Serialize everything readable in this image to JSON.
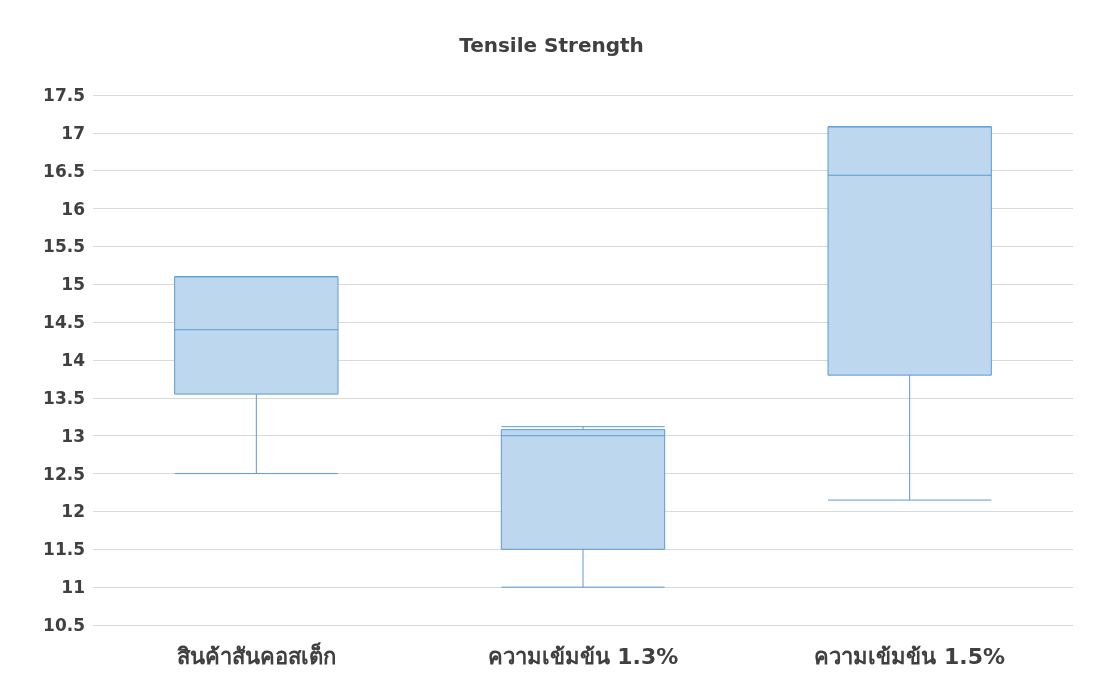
{
  "chart_data": {
    "type": "box",
    "title": "Tensile Strength",
    "categories": [
      "สินค้าสันคอสเต็ก",
      "ความเข้มข้น 1.3%",
      "ความเข้มข้น 1.5%"
    ],
    "boxes": [
      {
        "low": 12.5,
        "q1": 13.55,
        "median": 14.4,
        "q3": 15.1,
        "high": 15.1
      },
      {
        "low": 11.0,
        "q1": 11.5,
        "median": 13.0,
        "q3": 13.08,
        "high": 13.12
      },
      {
        "low": 12.15,
        "q1": 13.8,
        "median": 16.44,
        "q3": 17.08,
        "high": 17.08
      }
    ],
    "color": "#bdd7ee",
    "ylim": [
      10.5,
      17.5
    ],
    "yticks": [
      10.5,
      11,
      11.5,
      12,
      12.5,
      13,
      13.5,
      14,
      14.5,
      15,
      15.5,
      16,
      16.5,
      17,
      17.5
    ],
    "grid": "y"
  }
}
